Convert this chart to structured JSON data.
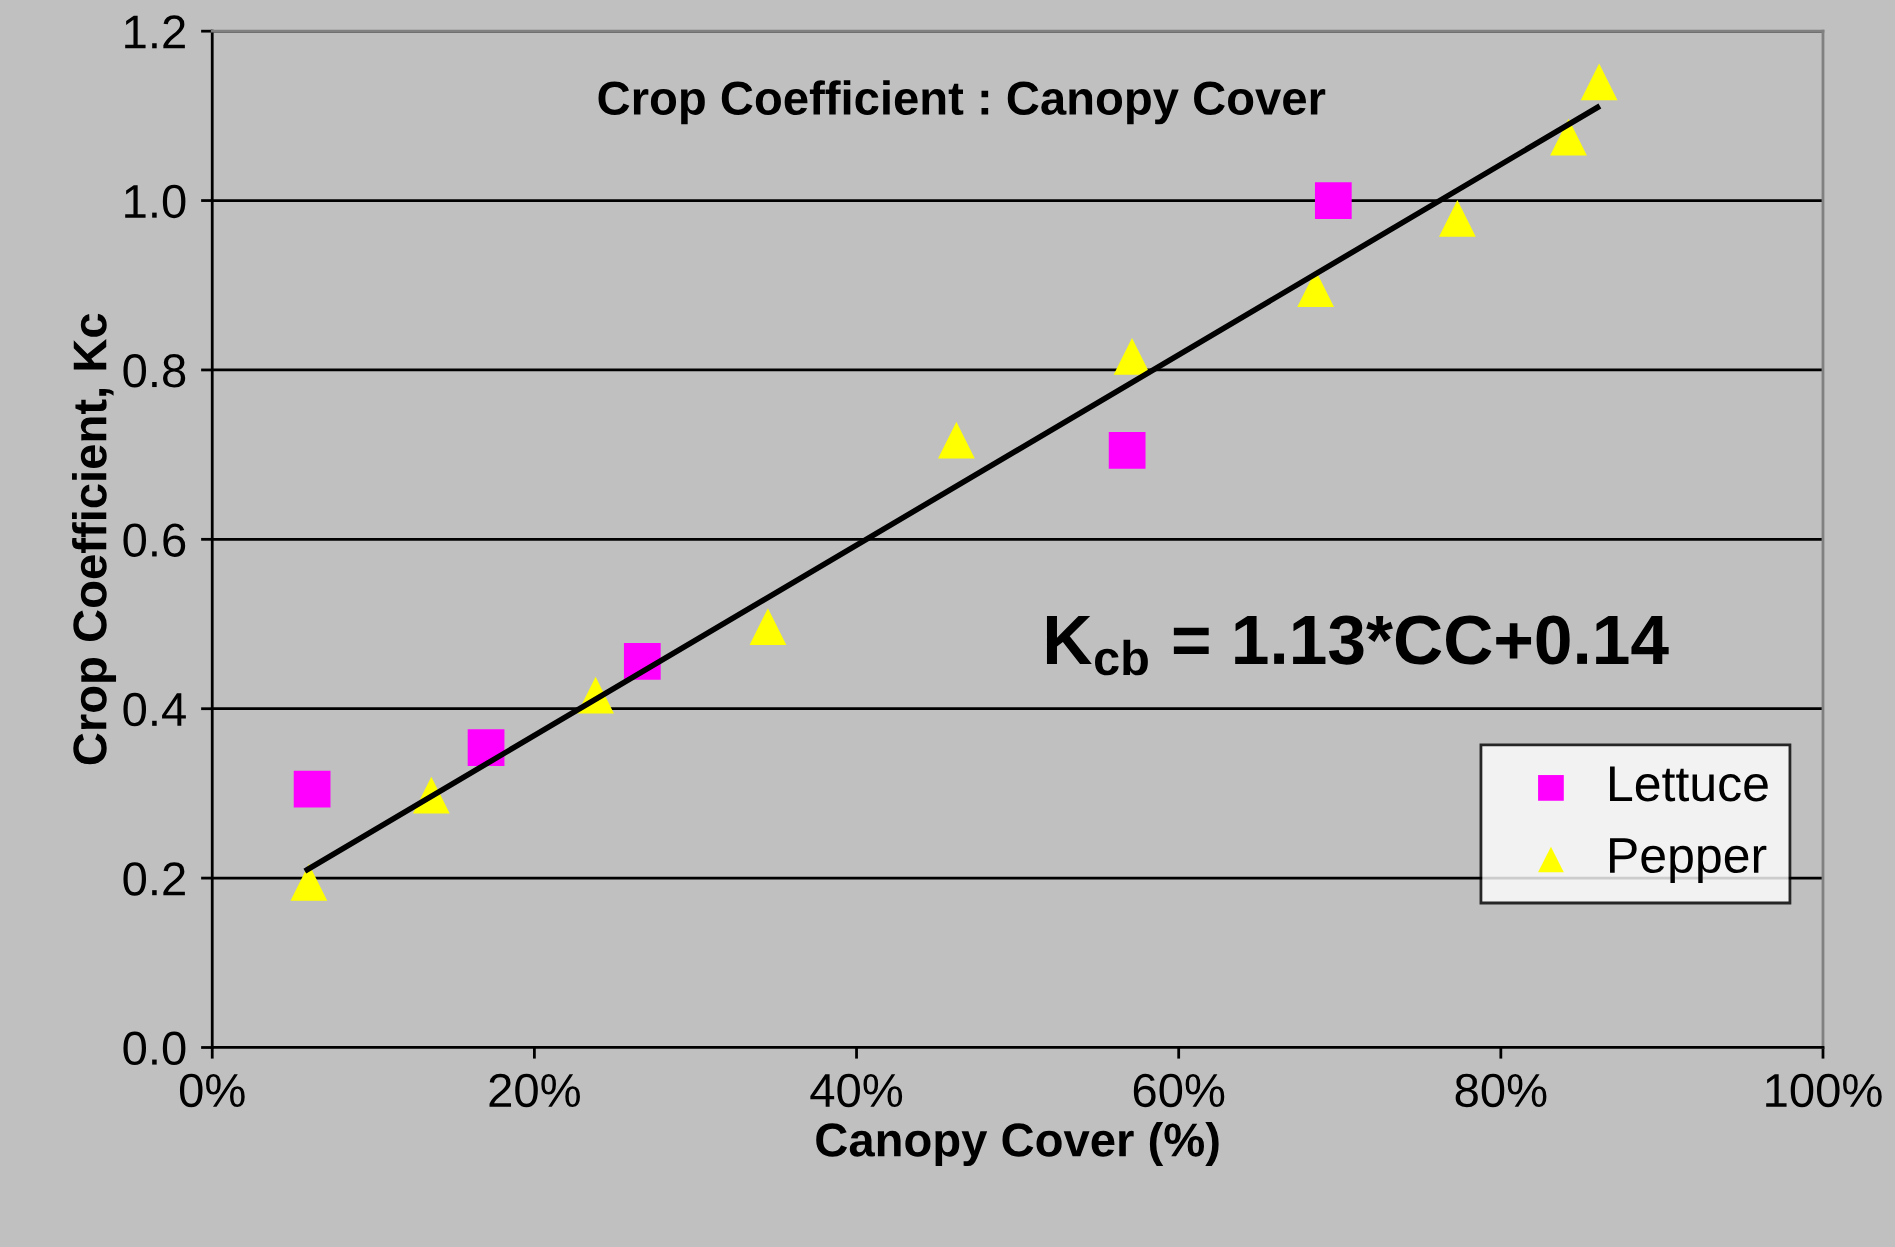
{
  "chart_data": {
    "type": "scatter",
    "title": "Crop Coefficient : Canopy Cover",
    "xlabel": "Canopy Cover (%)",
    "ylabel": "Crop Coefficient, Kc",
    "xlim": [
      0,
      100
    ],
    "xticks": [
      {
        "value": 0,
        "label": "0%"
      },
      {
        "value": 20,
        "label": "20%"
      },
      {
        "value": 40,
        "label": "40%"
      },
      {
        "value": 60,
        "label": "60%"
      },
      {
        "value": 80,
        "label": "80%"
      },
      {
        "value": 100,
        "label": "100%"
      }
    ],
    "ylim": [
      0,
      1.2
    ],
    "yticks": [
      {
        "value": 0,
        "label": "0.0"
      },
      {
        "value": 0.2,
        "label": "0.2"
      },
      {
        "value": 0.4,
        "label": "0.4"
      },
      {
        "value": 0.6,
        "label": "0.6"
      },
      {
        "value": 0.8,
        "label": "0.8"
      },
      {
        "value": 1.0,
        "label": "1.0"
      },
      {
        "value": 1.2,
        "label": "1.2"
      }
    ],
    "grid": "y",
    "legend": "right",
    "annotations": [
      "K$_{cb}$ = 1.13*CC+0.14"
    ],
    "series": [
      {
        "name": "Lettuce",
        "color": "#ff00ff",
        "marker": "square",
        "x": [
          6.2,
          17.0,
          26.7,
          56.8,
          69.6
        ],
        "values": [
          0.305,
          0.354,
          0.456,
          0.705,
          1.0
        ]
      },
      {
        "name": "Pepper",
        "color": "#ffff00",
        "marker": "triangle",
        "x": [
          6.0,
          13.6,
          23.8,
          34.5,
          46.2,
          57.1,
          68.5,
          77.3,
          84.2,
          86.1
        ],
        "values": [
          0.195,
          0.298,
          0.416,
          0.497,
          0.717,
          0.816,
          0.896,
          0.979,
          1.075,
          1.14
        ]
      },
      {
        "type": "line",
        "color": "#000000",
        "marker": "none",
        "line_style": "solid",
        "x": [
          5.9,
          86.0
        ],
        "values": [
          0.21,
          1.11
        ]
      }
    ]
  }
}
